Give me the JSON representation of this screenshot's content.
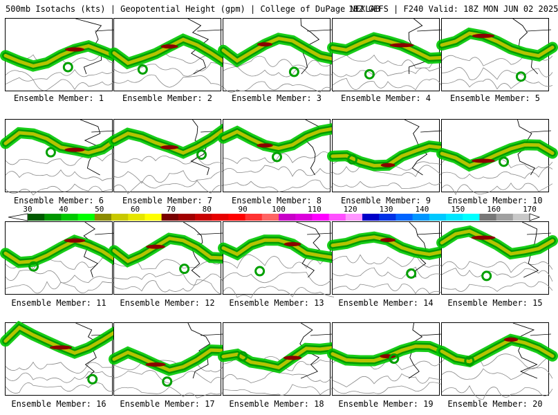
{
  "header": {
    "left": "500mb Isotachs (kts) | Geopotential Height (gpm) | College of DuPage NEXLAB",
    "right": "18Z GEFS | F240 Valid: 18Z MON JUN 02 2025"
  },
  "caption_prefix": "Ensemble Member: ",
  "panels": [
    {
      "member": "1"
    },
    {
      "member": "2"
    },
    {
      "member": "3"
    },
    {
      "member": "4"
    },
    {
      "member": "5"
    },
    {
      "member": "6"
    },
    {
      "member": "7"
    },
    {
      "member": "8"
    },
    {
      "member": "9"
    },
    {
      "member": "10"
    },
    {
      "member": "11"
    },
    {
      "member": "12"
    },
    {
      "member": "13"
    },
    {
      "member": "14"
    },
    {
      "member": "15"
    },
    {
      "member": "16"
    },
    {
      "member": "17"
    },
    {
      "member": "18"
    },
    {
      "member": "19"
    },
    {
      "member": "20"
    }
  ],
  "legend": {
    "tick_labels": [
      "30",
      "40",
      "50",
      "60",
      "70",
      "80",
      "90",
      "100",
      "110",
      "120",
      "130",
      "140",
      "150",
      "160",
      "170"
    ],
    "colors": [
      "#005a00",
      "#009600",
      "#00c800",
      "#00ff00",
      "#8c8c00",
      "#c8c800",
      "#e6e600",
      "#ffff00",
      "#780000",
      "#a00000",
      "#c80000",
      "#e60000",
      "#ff0000",
      "#ff3232",
      "#ff6464",
      "#c800c8",
      "#dc00dc",
      "#ff00ff",
      "#ff50ff",
      "#ff96ff",
      "#0000c8",
      "#0032e6",
      "#0064ff",
      "#0096ff",
      "#00c8ff",
      "#00e6ff",
      "#00ffff",
      "#787878",
      "#a0a0a0",
      "#c8c8c8"
    ],
    "unit": "kts"
  }
}
